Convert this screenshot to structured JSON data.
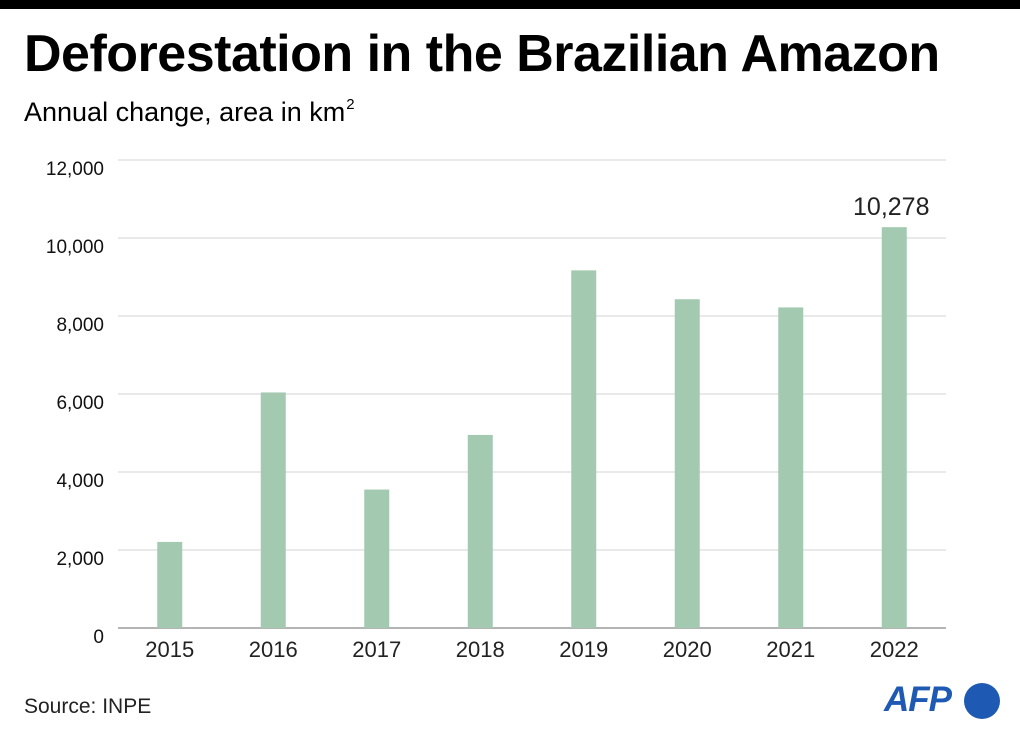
{
  "header": {
    "title": "Deforestation in the Brazilian Amazon",
    "subtitle": "Annual change, area in km",
    "subtitle_superscript": "2"
  },
  "chart_data": {
    "type": "bar",
    "title": "Deforestation in the Brazilian Amazon",
    "subtitle": "Annual change, area in km2",
    "xlabel": "",
    "ylabel": "",
    "categories": [
      "2015",
      "2016",
      "2017",
      "2018",
      "2019",
      "2020",
      "2021",
      "2022"
    ],
    "values": [
      2207,
      6040,
      3550,
      4950,
      9170,
      8430,
      8220,
      10278
    ],
    "ylim": [
      0,
      12000
    ],
    "yticks": [
      0,
      2000,
      4000,
      6000,
      8000,
      10000,
      12000
    ],
    "ytick_labels": [
      "0",
      "2,000",
      "4,000",
      "6,000",
      "8,000",
      "10,000",
      "12,000"
    ],
    "grid": true,
    "annotations": [
      {
        "category": "2022",
        "text": "10,278"
      }
    ],
    "bar_color": "#a3c9b0",
    "grid_color": "#dcdcdc"
  },
  "footer": {
    "source": "Source: INPE",
    "logo_text": "AFP",
    "logo_color": "#1e5ab4"
  }
}
